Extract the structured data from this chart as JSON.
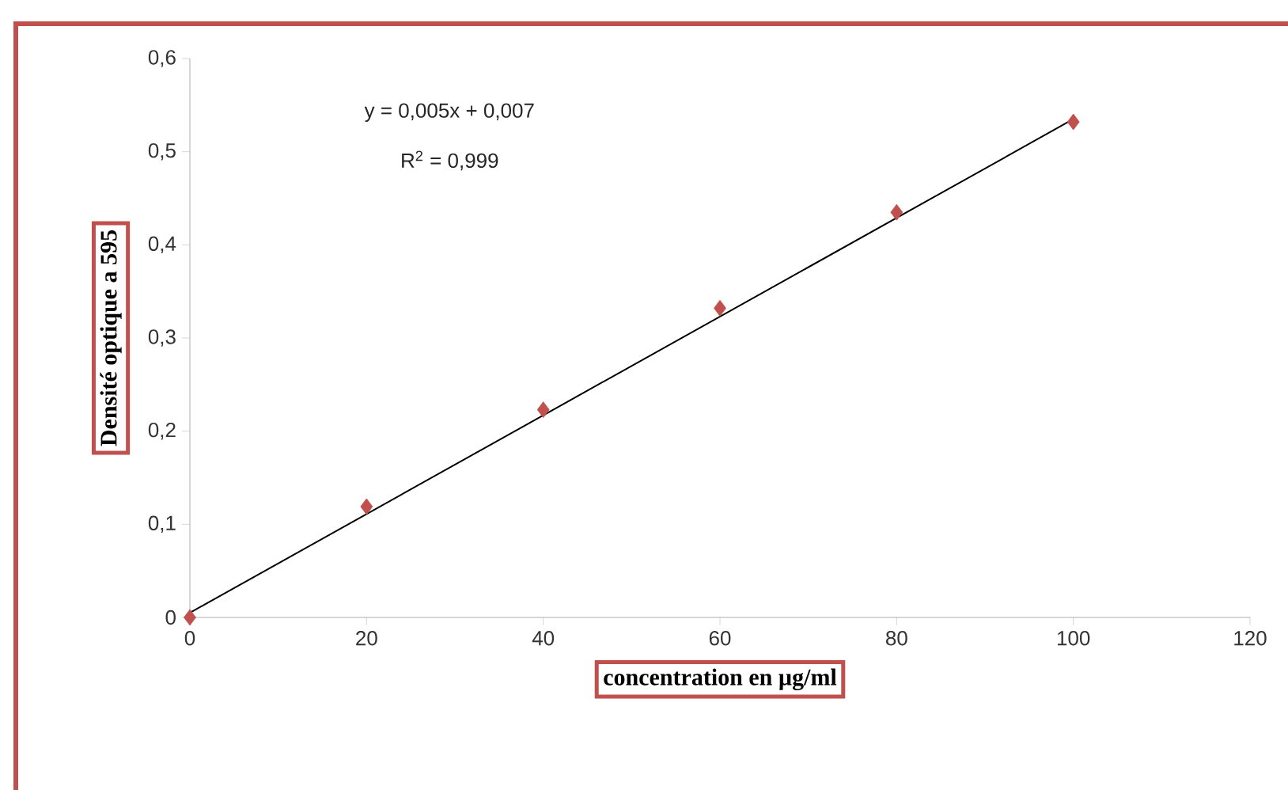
{
  "chart_data": {
    "type": "scatter",
    "xlabel": "concentration en µg/ml",
    "ylabel": "Densité optique a 595",
    "xlim": [
      0,
      120
    ],
    "xticks": [
      0,
      20,
      40,
      60,
      80,
      100,
      120
    ],
    "ylim": [
      0,
      0.6
    ],
    "yticks": [
      0,
      {
        "value": 0.1,
        "label": "0,1"
      },
      {
        "value": 0.2,
        "label": "0,2"
      },
      {
        "value": 0.3,
        "label": "0,3"
      },
      {
        "value": 0.4,
        "label": "0,4"
      },
      {
        "value": 0.5,
        "label": "0,5"
      },
      {
        "value": 0.6,
        "label": "0,6"
      }
    ],
    "marker": "diamond",
    "annotations": [
      "y = 0,005x + 0,007",
      "R$^{2}$ = 0,999"
    ],
    "series": [
      {
        "type": "line",
        "marker": "none",
        "color": "#000000",
        "x": [
          0,
          100
        ],
        "values": [
          0.005,
          0.535
        ]
      },
      {
        "color": "#c0504d",
        "x": [
          0,
          20,
          40,
          60,
          80,
          100
        ],
        "values": [
          0,
          0.119,
          0.223,
          0.332,
          0.435,
          0.532
        ]
      }
    ]
  }
}
